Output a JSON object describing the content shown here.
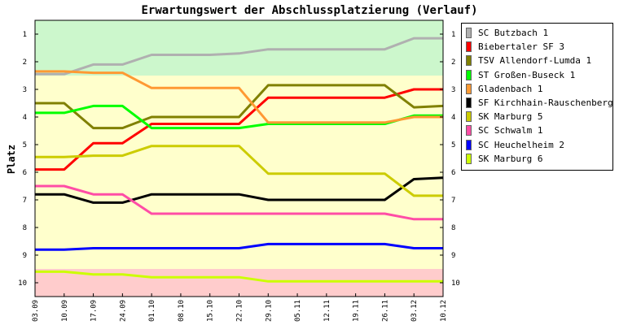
{
  "chart_data": {
    "type": "line",
    "title": "Erwartungswert der Abschlussplatzierung (Verlauf)",
    "ylabel": "Platz",
    "xlabel": "",
    "categories": [
      "03.09",
      "10.09",
      "17.09",
      "24.09",
      "01.10",
      "08.10",
      "15.10",
      "22.10",
      "29.10",
      "05.11",
      "12.11",
      "19.11",
      "26.11",
      "03.12",
      "10.12"
    ],
    "yticks": [
      1,
      2,
      3,
      4,
      5,
      6,
      7,
      8,
      9,
      10
    ],
    "ylim": [
      10.5,
      0.5
    ],
    "y_inverted": true,
    "grid": false,
    "legend_position": "top-right",
    "zones": [
      {
        "from": 0.5,
        "to": 2.5,
        "color": "#ccf7cc"
      },
      {
        "from": 2.5,
        "to": 9.5,
        "color": "#ffffcc"
      },
      {
        "from": 9.5,
        "to": 10.5,
        "color": "#ffcccc"
      }
    ],
    "series": [
      {
        "name": "SC Butzbach 1",
        "color": "#b0b0b0",
        "values": [
          2.45,
          2.45,
          2.1,
          2.1,
          1.75,
          1.75,
          1.75,
          1.7,
          1.55,
          1.55,
          1.55,
          1.55,
          1.55,
          1.15,
          1.15
        ]
      },
      {
        "name": "Biebertaler SF 3",
        "color": "#ff0000",
        "values": [
          5.9,
          5.9,
          4.95,
          4.95,
          4.25,
          4.25,
          4.25,
          4.25,
          3.3,
          3.3,
          3.3,
          3.3,
          3.3,
          3.0,
          3.0
        ]
      },
      {
        "name": "TSV Allendorf-Lumda 1",
        "color": "#808000",
        "values": [
          3.5,
          3.5,
          4.4,
          4.4,
          4.0,
          4.0,
          4.0,
          4.0,
          2.85,
          2.85,
          2.85,
          2.85,
          2.85,
          3.65,
          3.6
        ]
      },
      {
        "name": "ST Großen-Buseck 1",
        "color": "#00ff00",
        "values": [
          3.85,
          3.85,
          3.6,
          3.6,
          4.4,
          4.4,
          4.4,
          4.4,
          4.25,
          4.25,
          4.25,
          4.25,
          4.25,
          3.95,
          3.95
        ]
      },
      {
        "name": "Gladenbach 1",
        "color": "#ff9933",
        "values": [
          2.35,
          2.35,
          2.4,
          2.4,
          2.95,
          2.95,
          2.95,
          2.95,
          4.2,
          4.2,
          4.2,
          4.2,
          4.2,
          4.0,
          4.0
        ]
      },
      {
        "name": "SF Kirchhain-Rauschenberg 1",
        "color": "#000000",
        "values": [
          6.8,
          6.8,
          7.1,
          7.1,
          6.8,
          6.8,
          6.8,
          6.8,
          7.0,
          7.0,
          7.0,
          7.0,
          7.0,
          6.25,
          6.2
        ]
      },
      {
        "name": "SK Marburg 5",
        "color": "#cccc00",
        "values": [
          5.45,
          5.45,
          5.4,
          5.4,
          5.05,
          5.05,
          5.05,
          5.05,
          6.05,
          6.05,
          6.05,
          6.05,
          6.05,
          6.85,
          6.85
        ]
      },
      {
        "name": "SC Schwalm 1",
        "color": "#ff4da6",
        "values": [
          6.5,
          6.5,
          6.8,
          6.8,
          7.5,
          7.5,
          7.5,
          7.5,
          7.5,
          7.5,
          7.5,
          7.5,
          7.5,
          7.7,
          7.7
        ]
      },
      {
        "name": "SC Heuchelheim 2",
        "color": "#0000ff",
        "values": [
          8.8,
          8.8,
          8.75,
          8.75,
          8.75,
          8.75,
          8.75,
          8.75,
          8.6,
          8.6,
          8.6,
          8.6,
          8.6,
          8.75,
          8.75
        ]
      },
      {
        "name": "SK Marburg 6",
        "color": "#ccff00",
        "values": [
          9.6,
          9.6,
          9.7,
          9.7,
          9.8,
          9.8,
          9.8,
          9.8,
          9.95,
          9.95,
          9.95,
          9.95,
          9.95,
          9.95,
          9.95
        ]
      }
    ]
  }
}
